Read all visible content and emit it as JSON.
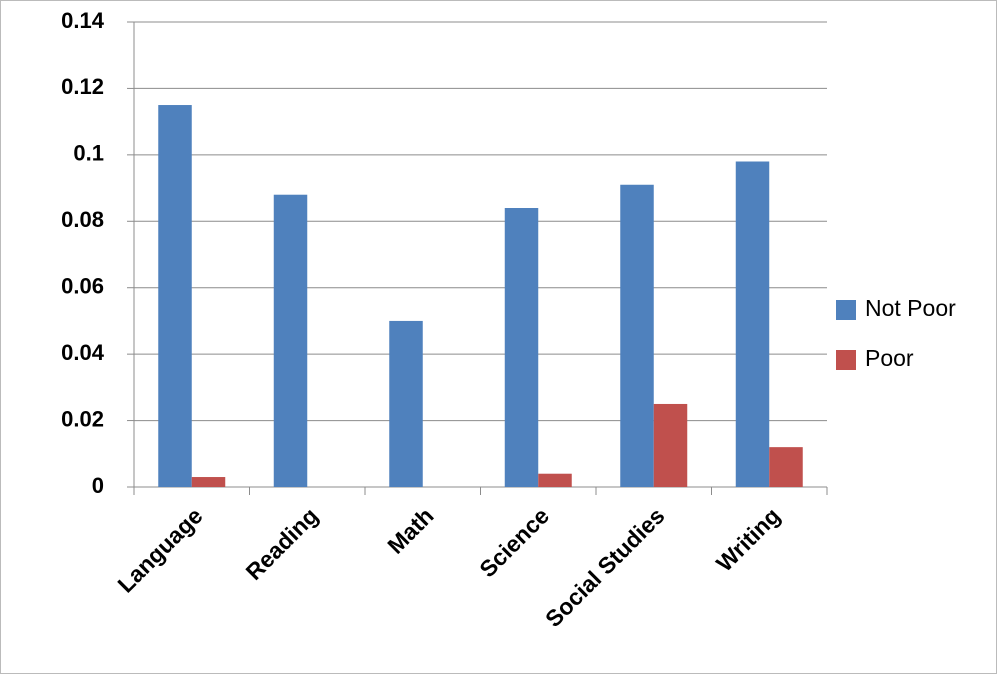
{
  "chart_data": {
    "type": "bar",
    "categories": [
      "Language",
      "Reading",
      "Math",
      "Science",
      "Social Studies",
      "Writing"
    ],
    "series": [
      {
        "name": "Not Poor",
        "color": "#4f81bd",
        "values": [
          0.115,
          0.088,
          0.05,
          0.084,
          0.091,
          0.098
        ]
      },
      {
        "name": "Poor",
        "color": "#c0504d",
        "values": [
          0.003,
          0,
          0,
          0.004,
          0.025,
          0.012
        ]
      }
    ],
    "ylim": [
      0,
      0.14
    ],
    "yticks": [
      0,
      0.02,
      0.04,
      0.06,
      0.08,
      0.1,
      0.12,
      0.14
    ],
    "grid": true,
    "legend": "right"
  }
}
